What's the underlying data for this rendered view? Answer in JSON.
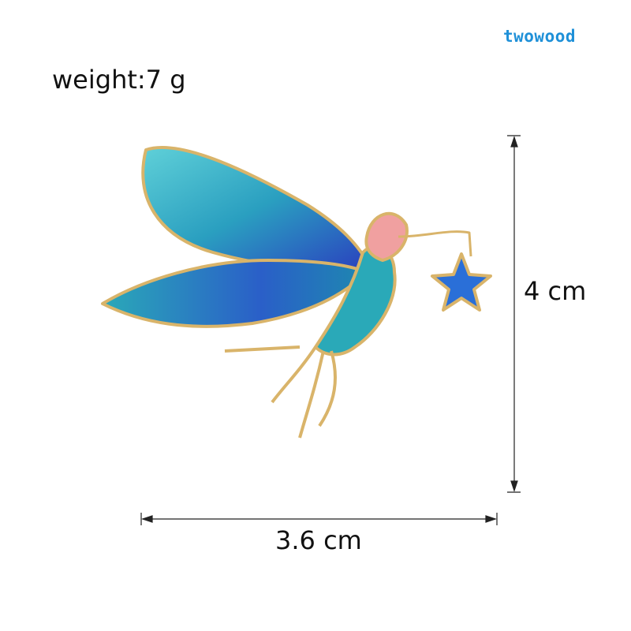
{
  "brand": {
    "logo": "twowood",
    "color": "#1e90d8"
  },
  "specs": {
    "weight": "weight:7 g",
    "height": "4 cm",
    "width": "3.6 cm"
  },
  "product": {
    "subject": "fairy brooch",
    "colors": {
      "enamel_teal": "#2aa9b8",
      "enamel_blue": "#2a3fbf",
      "gold": "#d9b46a",
      "pink": "#f0a0a0"
    }
  }
}
